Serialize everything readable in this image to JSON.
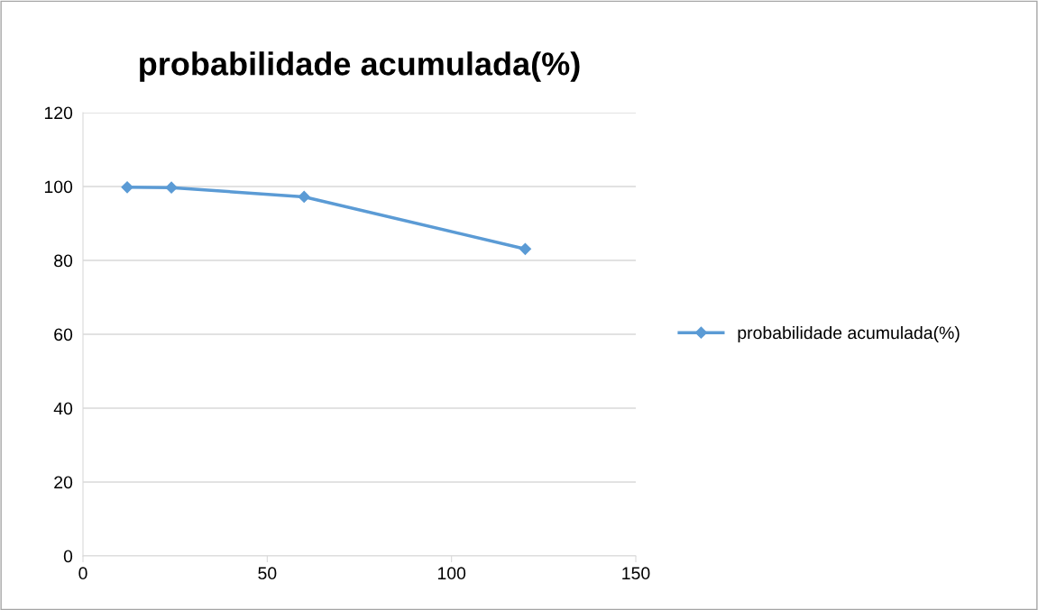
{
  "chart_data": {
    "type": "line",
    "title": "probabilidade acumulada(%)",
    "x": [
      12,
      24,
      60,
      120
    ],
    "series": [
      {
        "name": "probabilidade acumulada(%)",
        "color": "#5b9bd5",
        "values": [
          99.8,
          99.7,
          97.2,
          83.1
        ]
      }
    ],
    "xlim": [
      0,
      150
    ],
    "xticks": [
      0,
      50,
      100,
      150
    ],
    "ylim": [
      0,
      120
    ],
    "yticks": [
      0,
      20,
      40,
      60,
      80,
      100,
      120
    ],
    "grid": "y",
    "legend": "right",
    "marker": "diamond",
    "line_style": "solid"
  }
}
